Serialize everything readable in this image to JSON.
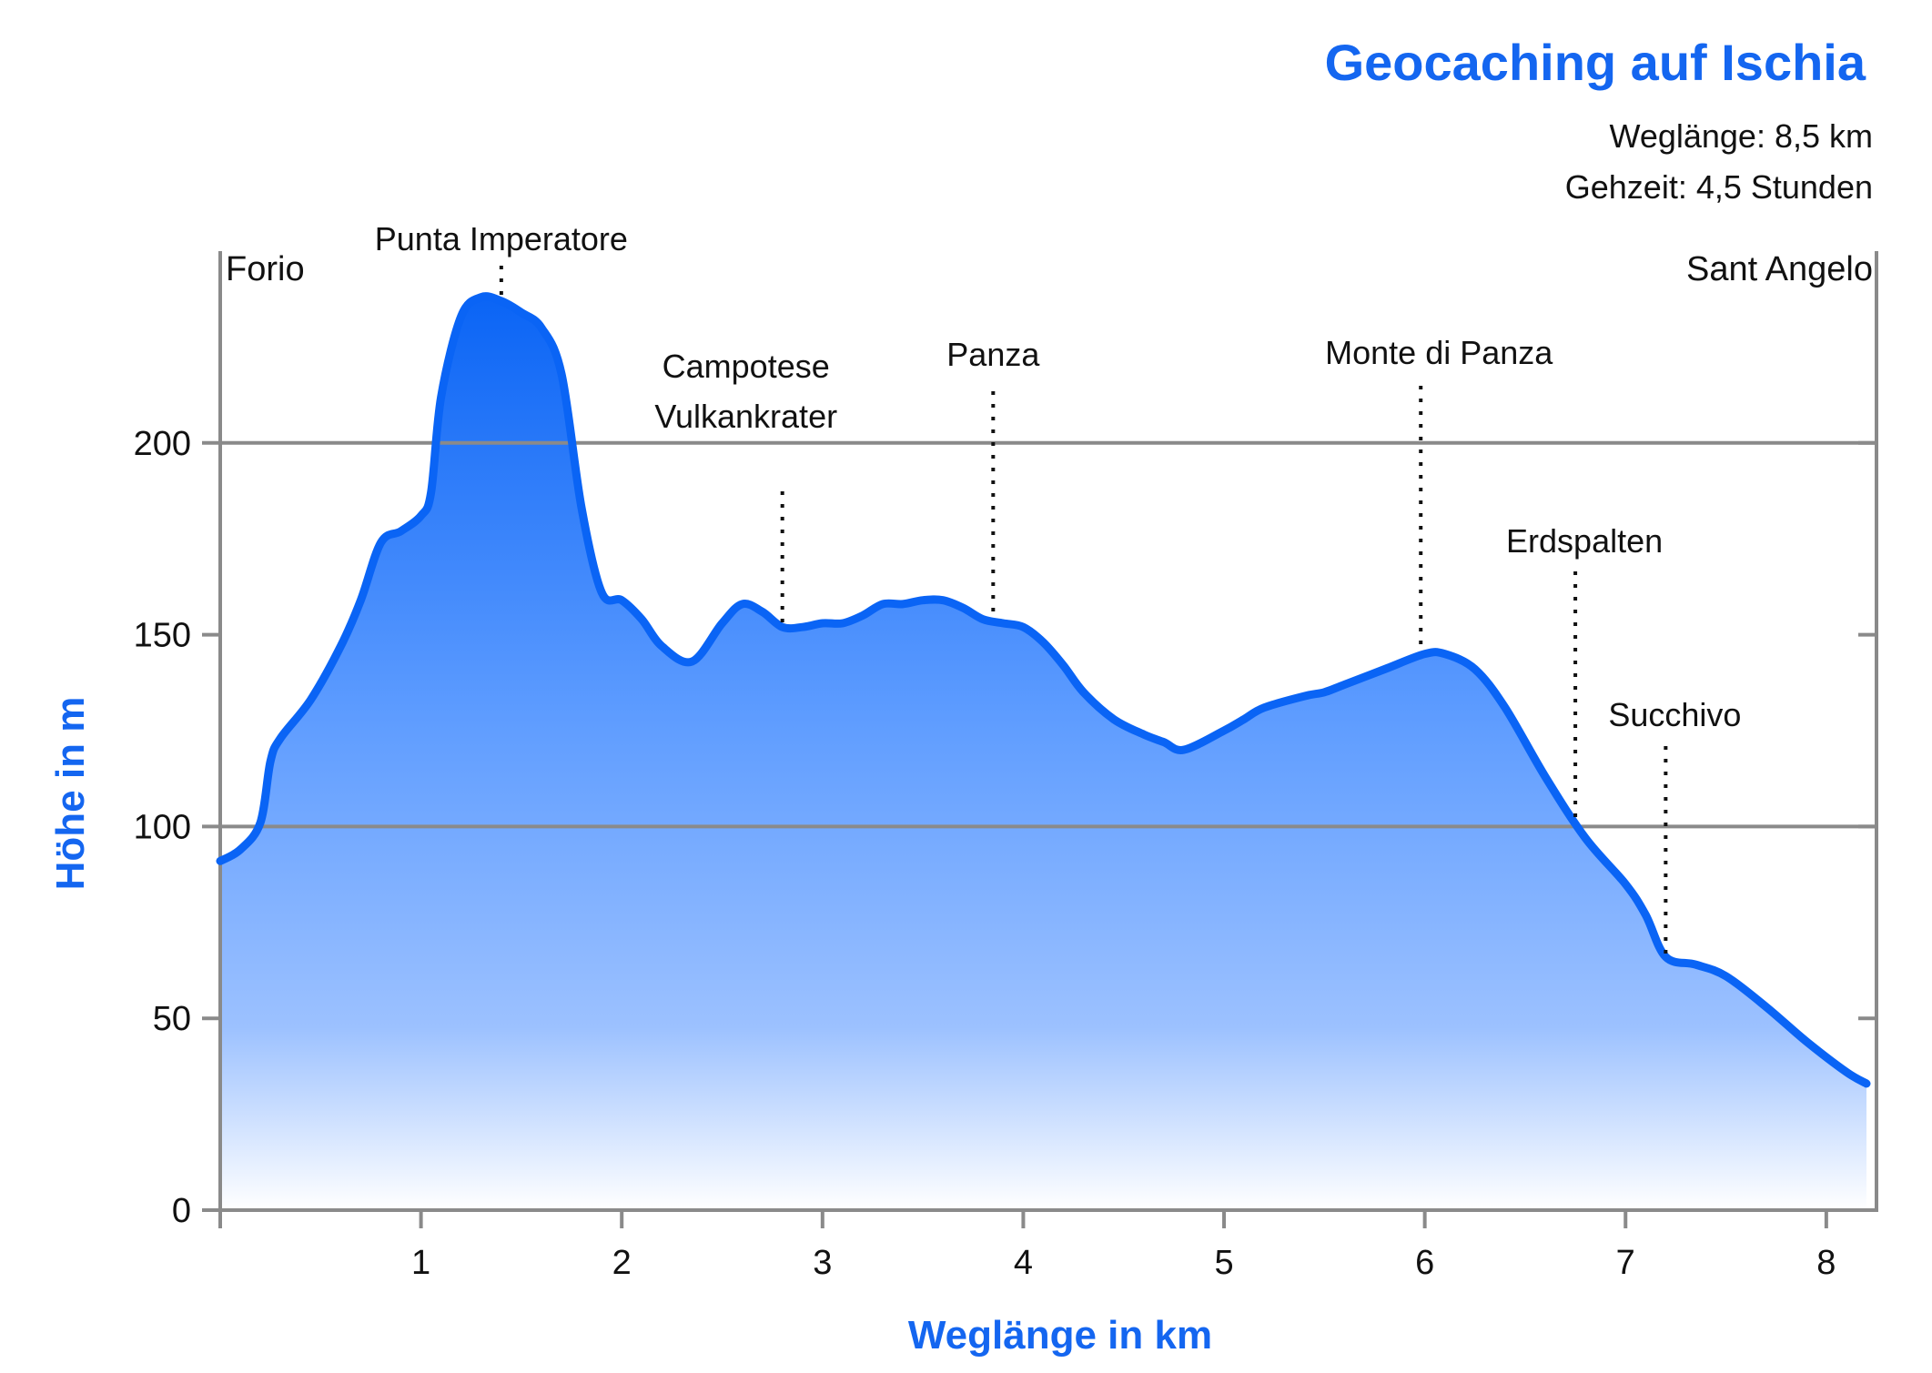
{
  "chart_data": {
    "type": "area",
    "title": "Geocaching auf Ischia",
    "subtitle_lines": [
      "Weglänge: 8,5 km",
      "Gehzeit: 4,5 Stunden"
    ],
    "xlabel": "Weglänge in km",
    "ylabel": "Höhe in m",
    "xlim": [
      0,
      8.25
    ],
    "ylim": [
      0,
      250
    ],
    "x_ticks": [
      1,
      2,
      3,
      4,
      5,
      6,
      7,
      8
    ],
    "x_tick_labels": [
      "1",
      "2",
      "3",
      "4",
      "5",
      "6",
      "7",
      "8"
    ],
    "y_ticks": [
      0,
      50,
      100,
      150,
      200
    ],
    "y_tick_labels": [
      "0",
      "50",
      "100",
      "150",
      "200"
    ],
    "gridlines_y": [
      100,
      200
    ],
    "start_label": "Forio",
    "end_label": "Sant Angelo",
    "series": [
      {
        "x": [
          0,
          0.1,
          0.2,
          0.25,
          0.3,
          0.45,
          0.6,
          0.7,
          0.8,
          0.9,
          1.0,
          1.05,
          1.1,
          1.2,
          1.3,
          1.4,
          1.5,
          1.6,
          1.7,
          1.8,
          1.9,
          2.0,
          2.1,
          2.2,
          2.35,
          2.5,
          2.6,
          2.7,
          2.8,
          2.9,
          3.0,
          3.1,
          3.2,
          3.3,
          3.4,
          3.5,
          3.6,
          3.7,
          3.8,
          3.9,
          4.0,
          4.1,
          4.2,
          4.3,
          4.45,
          4.6,
          4.7,
          4.8,
          5.0,
          5.1,
          5.2,
          5.4,
          5.5,
          5.6,
          5.8,
          6.0,
          6.1,
          6.25,
          6.4,
          6.6,
          6.8,
          7.0,
          7.1,
          7.2,
          7.35,
          7.5,
          7.7,
          7.9,
          8.1,
          8.2
        ],
        "y": [
          91,
          94,
          101,
          117,
          123,
          133,
          147,
          159,
          174,
          177,
          181,
          187,
          212,
          233,
          238,
          237,
          234,
          230,
          218,
          183,
          161,
          159,
          154,
          147,
          143,
          153,
          158,
          156,
          152,
          152,
          153,
          153,
          155,
          158,
          158,
          159,
          159,
          157,
          154,
          153,
          152,
          148,
          142,
          135,
          128,
          124,
          122,
          120,
          125,
          128,
          131,
          134,
          135,
          137,
          141,
          145,
          145,
          141,
          131,
          113,
          97,
          85,
          77,
          66,
          64,
          61,
          53,
          44,
          36,
          33
        ]
      }
    ],
    "annotations": [
      {
        "label_lines": [
          "Punta Imperatore"
        ],
        "x": 1.4,
        "y": 238
      },
      {
        "label_lines": [
          "Campotese",
          "Vulkankrater"
        ],
        "x": 2.8,
        "y": 152
      },
      {
        "label_lines": [
          "Panza"
        ],
        "x": 3.85,
        "y": 154
      },
      {
        "label_lines": [
          "Monte di Panza"
        ],
        "x": 5.98,
        "y": 145
      },
      {
        "label_lines": [
          "Erdspalten"
        ],
        "x": 6.75,
        "y": 101
      },
      {
        "label_lines": [
          "Succhivo"
        ],
        "x": 7.2,
        "y": 66
      }
    ],
    "colors": {
      "line": "#0a64f5",
      "fill_top": "#0a64f5",
      "fill_bottom": "#ffffff",
      "accent_text": "#1466f0",
      "grid": "#8a8a8a",
      "axis": "#8a8a8a"
    }
  }
}
